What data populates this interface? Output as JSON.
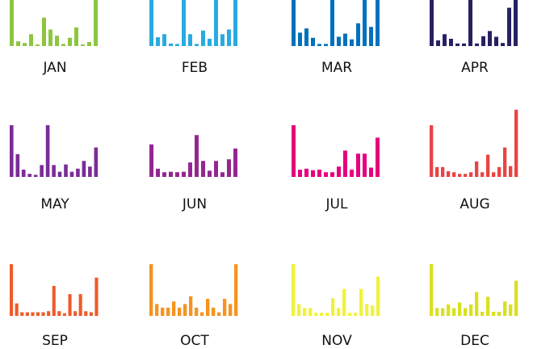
{
  "chart_data": [
    {
      "type": "bar",
      "title": "JAN",
      "color": "#8cc63f",
      "values": [
        100,
        9,
        6,
        23,
        3,
        55,
        32,
        20,
        4,
        16,
        36,
        3,
        8,
        100
      ]
    },
    {
      "type": "bar",
      "title": "FEB",
      "color": "#29abe2",
      "values": [
        100,
        17,
        23,
        5,
        4,
        100,
        23,
        4,
        30,
        14,
        100,
        23,
        32,
        100
      ]
    },
    {
      "type": "bar",
      "title": "MAR",
      "color": "#0071bc",
      "values": [
        100,
        26,
        34,
        16,
        4,
        4,
        100,
        18,
        24,
        13,
        44,
        100,
        37,
        100
      ]
    },
    {
      "type": "bar",
      "title": "APR",
      "color": "#262262",
      "values": [
        100,
        11,
        23,
        14,
        5,
        5,
        100,
        5,
        19,
        29,
        18,
        6,
        74,
        100
      ]
    },
    {
      "type": "bar",
      "title": "MAY",
      "color": "#7b2c97",
      "values": [
        100,
        44,
        14,
        6,
        4,
        23,
        100,
        23,
        10,
        24,
        10,
        16,
        31,
        20,
        57
      ]
    },
    {
      "type": "bar",
      "title": "JUN",
      "color": "#93278f",
      "values": [
        63,
        16,
        9,
        10,
        9,
        10,
        28,
        81,
        31,
        12,
        31,
        9,
        34,
        55
      ]
    },
    {
      "type": "bar",
      "title": "JUL",
      "color": "#e6007e",
      "values": [
        100,
        14,
        16,
        13,
        14,
        9,
        9,
        20,
        51,
        14,
        45,
        45,
        18,
        76
      ]
    },
    {
      "type": "bar",
      "title": "AUG",
      "color": "#e84444",
      "values": [
        100,
        19,
        19,
        11,
        9,
        6,
        6,
        9,
        30,
        9,
        43,
        9,
        19,
        57,
        21,
        130
      ]
    },
    {
      "type": "bar",
      "title": "SEP",
      "color": "#f05a28",
      "values": [
        100,
        24,
        7,
        7,
        7,
        7,
        7,
        9,
        58,
        9,
        5,
        42,
        9,
        42,
        9,
        7,
        74
      ]
    },
    {
      "type": "bar",
      "title": "OCT",
      "color": "#f7931e",
      "values": [
        100,
        23,
        16,
        16,
        28,
        16,
        23,
        38,
        16,
        7,
        33,
        16,
        7,
        33,
        23,
        100
      ]
    },
    {
      "type": "bar",
      "title": "NOV",
      "color": "#f1f13c",
      "values": [
        100,
        23,
        15,
        15,
        6,
        6,
        6,
        34,
        15,
        52,
        6,
        6,
        52,
        23,
        20,
        76
      ]
    },
    {
      "type": "bar",
      "title": "DEC",
      "color": "#d9e021",
      "values": [
        100,
        15,
        15,
        22,
        15,
        26,
        15,
        22,
        46,
        8,
        37,
        8,
        8,
        28,
        22,
        68
      ]
    }
  ]
}
